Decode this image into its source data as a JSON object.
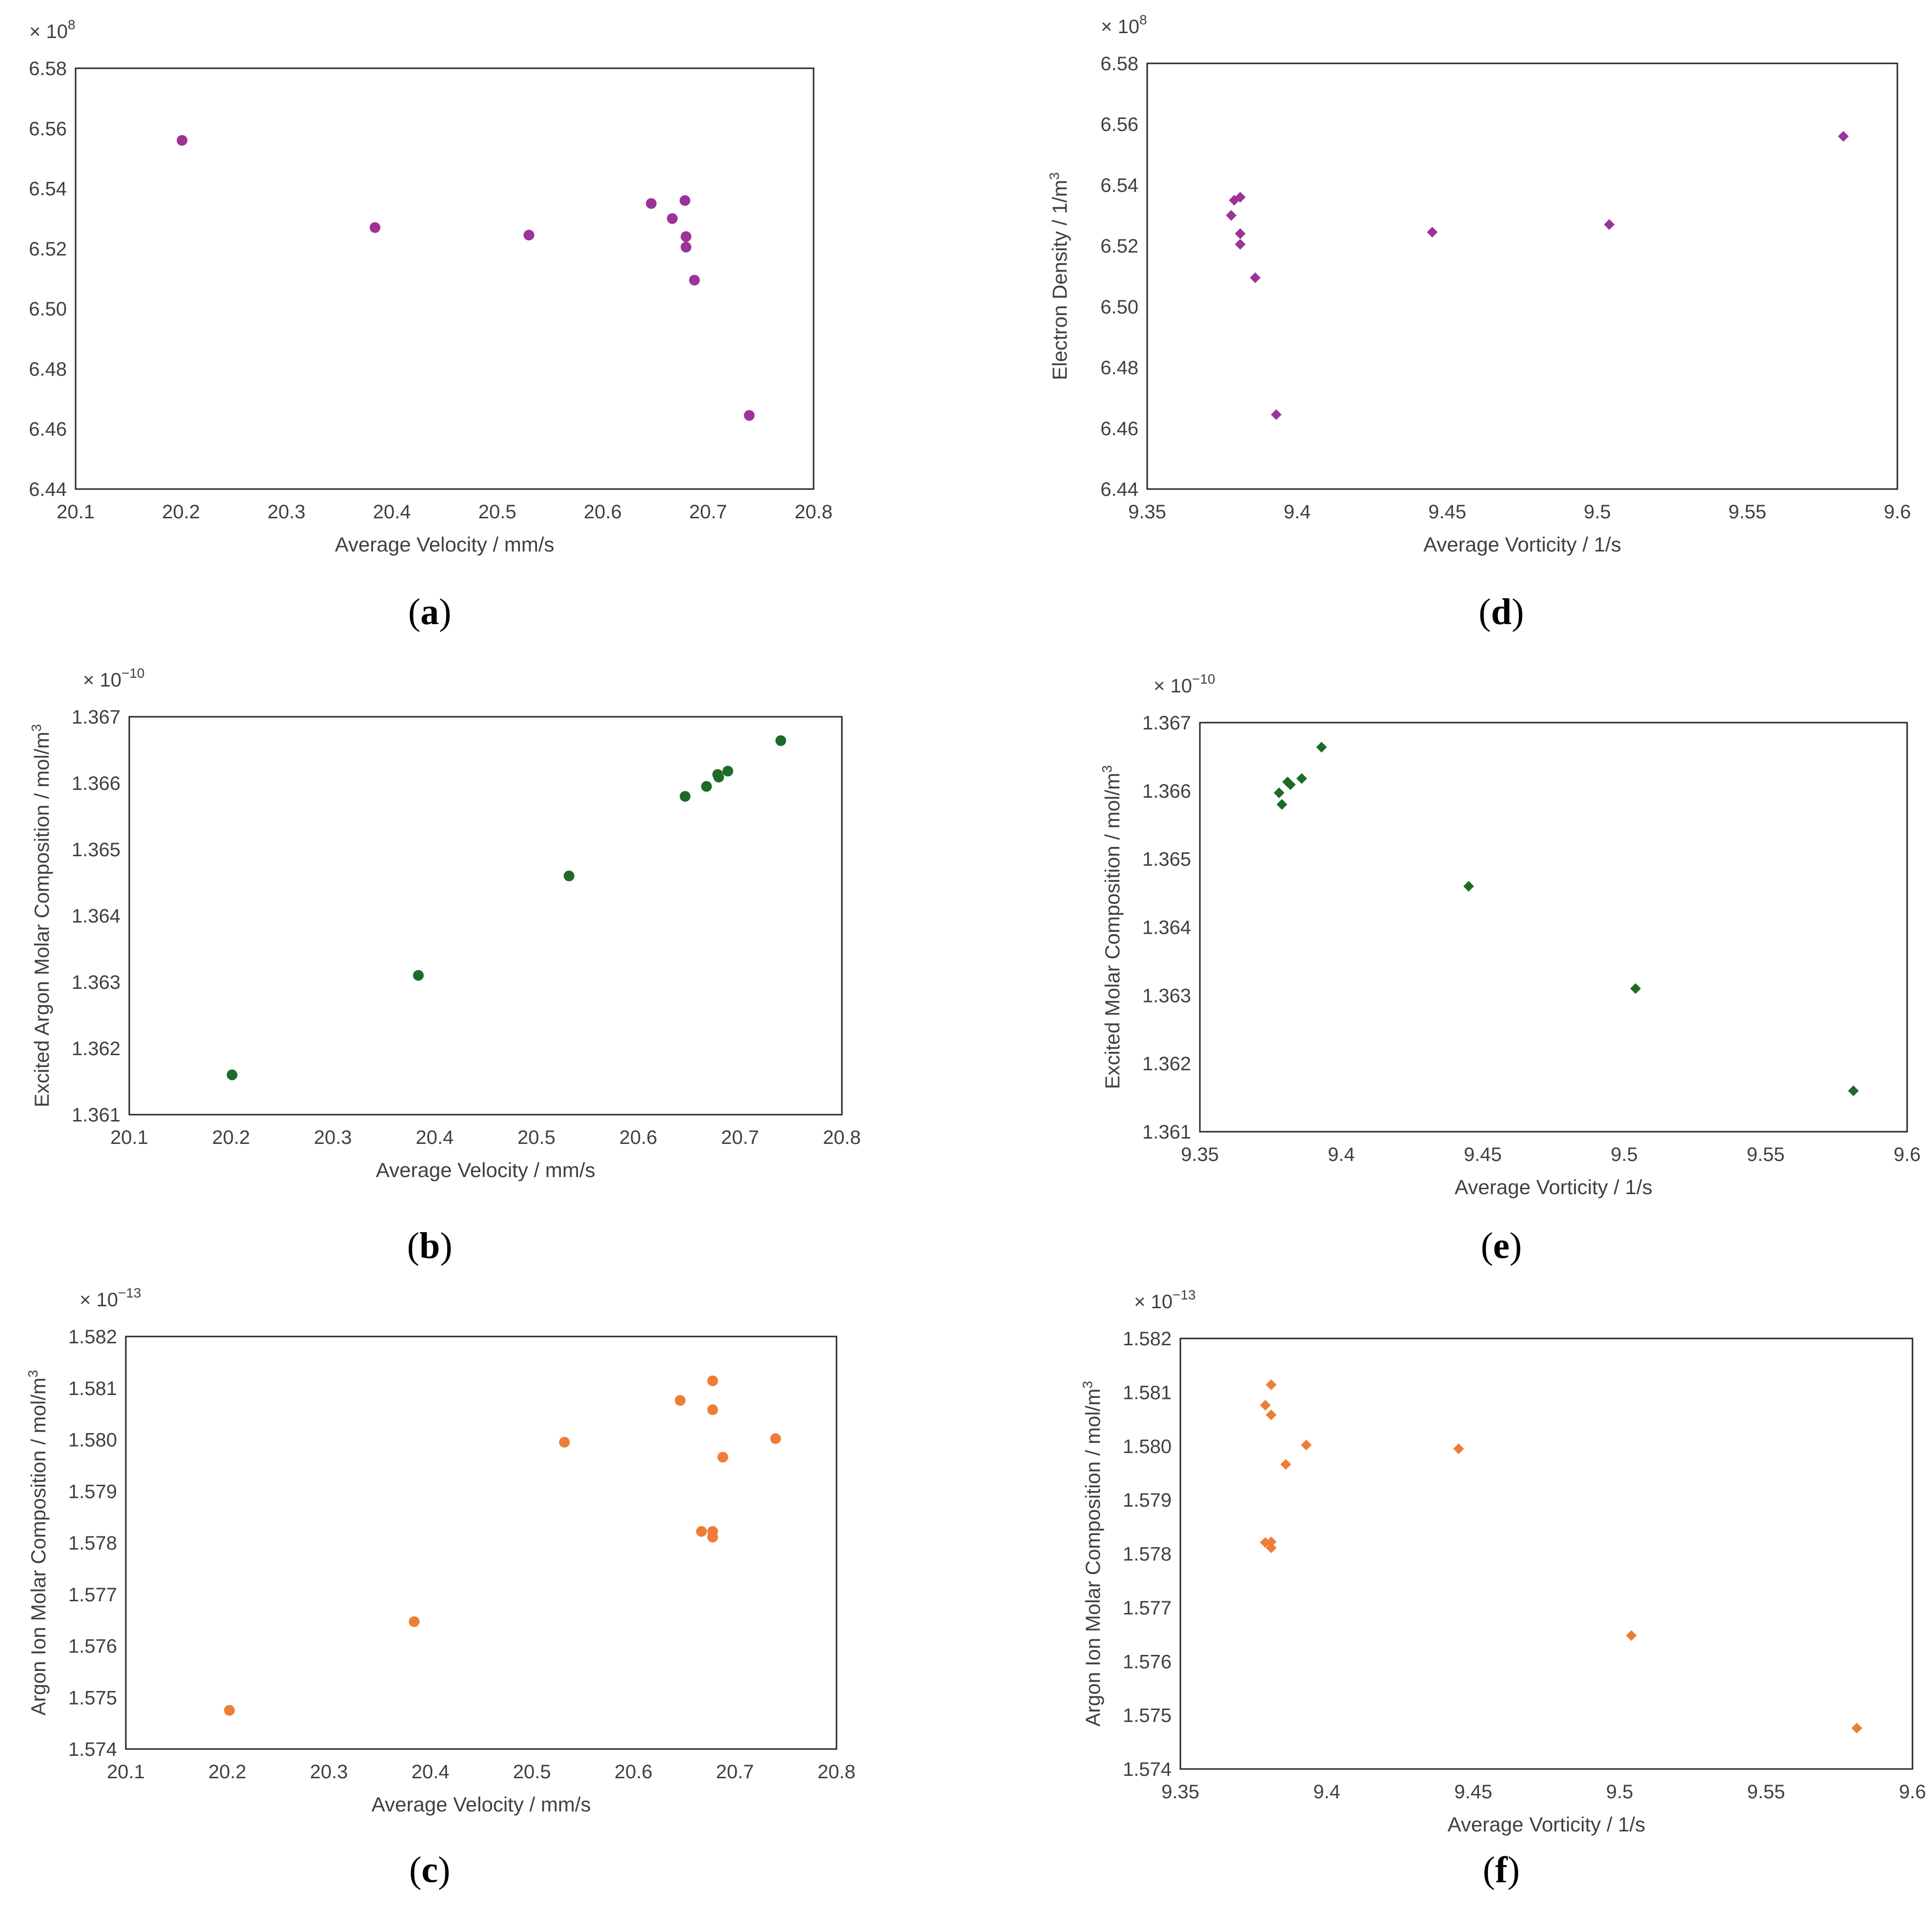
{
  "colors": {
    "purple": "#9b3399",
    "green": "#1e6b28",
    "orange": "#ee7d35",
    "frame": "#262626",
    "text": "#404040"
  },
  "chart_data": [
    {
      "id": "a",
      "type": "scatter",
      "marker": "circle",
      "color": "#9b3399",
      "panel_label": "a",
      "xlabel": "Average Velocity / mm/s",
      "ylabel": "Electron Density / 1/m",
      "ylabel_unit_sup": "3",
      "multiplier_base": "× 10",
      "multiplier_exp": "8",
      "xlim": [
        20.1,
        20.8
      ],
      "ylim": [
        6.44,
        6.58
      ],
      "xticks": [
        "20.1",
        "20.2",
        "20.3",
        "20.4",
        "20.5",
        "20.6",
        "20.7",
        "20.8"
      ],
      "yticks": [
        "6.44",
        "6.46",
        "6.48",
        "6.50",
        "6.52",
        "6.54",
        "6.56",
        "6.58"
      ],
      "grid": false,
      "points": [
        {
          "x": 20.201,
          "y": 6.556
        },
        {
          "x": 20.384,
          "y": 6.527
        },
        {
          "x": 20.53,
          "y": 6.5245
        },
        {
          "x": 20.646,
          "y": 6.535
        },
        {
          "x": 20.666,
          "y": 6.53
        },
        {
          "x": 20.678,
          "y": 6.536
        },
        {
          "x": 20.679,
          "y": 6.524
        },
        {
          "x": 20.679,
          "y": 6.5205
        },
        {
          "x": 20.687,
          "y": 6.5095
        },
        {
          "x": 20.739,
          "y": 6.4645
        }
      ]
    },
    {
      "id": "d",
      "type": "scatter",
      "marker": "diamond",
      "color": "#9b3399",
      "panel_label": "d",
      "xlabel": "Average Vorticity / 1/s",
      "ylabel": "Electron Density / 1/m",
      "ylabel_unit_sup": "3",
      "multiplier_base": "× 10",
      "multiplier_exp": "8",
      "xlim": [
        9.35,
        9.6
      ],
      "ylim": [
        6.44,
        6.58
      ],
      "xticks": [
        "9.35",
        "9.4",
        "9.45",
        "9.5",
        "9.55",
        "9.6"
      ],
      "yticks": [
        "6.44",
        "6.46",
        "6.48",
        "6.50",
        "6.52",
        "6.54",
        "6.56",
        "6.58"
      ],
      "grid": false,
      "points": [
        {
          "x": 9.378,
          "y": 6.53
        },
        {
          "x": 9.379,
          "y": 6.535
        },
        {
          "x": 9.381,
          "y": 6.536
        },
        {
          "x": 9.381,
          "y": 6.524
        },
        {
          "x": 9.381,
          "y": 6.5205
        },
        {
          "x": 9.386,
          "y": 6.5095
        },
        {
          "x": 9.393,
          "y": 6.4645
        },
        {
          "x": 9.445,
          "y": 6.5245
        },
        {
          "x": 9.504,
          "y": 6.527
        },
        {
          "x": 9.582,
          "y": 6.556
        }
      ]
    },
    {
      "id": "b",
      "type": "scatter",
      "marker": "circle",
      "color": "#1e6b28",
      "panel_label": "b",
      "xlabel": "Average Velocity / mm/s",
      "ylabel": "Excited Argon Molar Composition  / mol/m",
      "ylabel_unit_sup": "3",
      "multiplier_base": "× 10",
      "multiplier_exp": "−10",
      "xlim": [
        20.1,
        20.8
      ],
      "ylim": [
        1.361,
        1.367
      ],
      "xticks": [
        "20.1",
        "20.2",
        "20.3",
        "20.4",
        "20.5",
        "20.6",
        "20.7",
        "20.8"
      ],
      "yticks": [
        "1.361",
        "1.362",
        "1.363",
        "1.364",
        "1.365",
        "1.366",
        "1.367"
      ],
      "grid": false,
      "points": [
        {
          "x": 20.201,
          "y": 1.3616
        },
        {
          "x": 20.384,
          "y": 1.3631
        },
        {
          "x": 20.532,
          "y": 1.3646
        },
        {
          "x": 20.646,
          "y": 1.3658
        },
        {
          "x": 20.667,
          "y": 1.36595
        },
        {
          "x": 20.678,
          "y": 1.36613
        },
        {
          "x": 20.679,
          "y": 1.36609
        },
        {
          "x": 20.688,
          "y": 1.36618
        },
        {
          "x": 20.74,
          "y": 1.36664
        }
      ]
    },
    {
      "id": "e",
      "type": "scatter",
      "marker": "diamond",
      "color": "#1e6b28",
      "panel_label": "e",
      "xlabel": "Average Vorticity /  1/s",
      "ylabel": "Excited Molar Composition / mol/m",
      "ylabel_unit_sup": "3",
      "multiplier_base": "× 10",
      "multiplier_exp": "−10",
      "xlim": [
        9.35,
        9.6
      ],
      "ylim": [
        1.361,
        1.367
      ],
      "xticks": [
        "9.35",
        "9.4",
        "9.45",
        "9.5",
        "9.55",
        "9.6"
      ],
      "yticks": [
        "1.361",
        "1.362",
        "1.363",
        "1.364",
        "1.365",
        "1.366",
        "1.367"
      ],
      "grid": false,
      "points": [
        {
          "x": 9.378,
          "y": 1.36597
        },
        {
          "x": 9.379,
          "y": 1.3658
        },
        {
          "x": 9.381,
          "y": 1.36613
        },
        {
          "x": 9.382,
          "y": 1.36609
        },
        {
          "x": 9.386,
          "y": 1.36618
        },
        {
          "x": 9.393,
          "y": 1.36664
        },
        {
          "x": 9.445,
          "y": 1.3646
        },
        {
          "x": 9.504,
          "y": 1.3631
        },
        {
          "x": 9.581,
          "y": 1.3616
        }
      ]
    },
    {
      "id": "c",
      "type": "scatter",
      "marker": "circle",
      "color": "#ee7d35",
      "panel_label": "c",
      "xlabel": "Average Velocity / mm/s",
      "ylabel": "Argon Ion Molar Composition  / mol/m",
      "ylabel_unit_sup": "3",
      "multiplier_base": "× 10",
      "multiplier_exp": "−13",
      "xlim": [
        20.1,
        20.8
      ],
      "ylim": [
        1.574,
        1.582
      ],
      "xticks": [
        "20.1",
        "20.2",
        "20.3",
        "20.4",
        "20.5",
        "20.6",
        "20.7",
        "20.8"
      ],
      "yticks": [
        "1.574",
        "1.575",
        "1.576",
        "1.577",
        "1.578",
        "1.579",
        "1.580",
        "1.581",
        "1.582"
      ],
      "grid": false,
      "points": [
        {
          "x": 20.202,
          "y": 1.57475
        },
        {
          "x": 20.384,
          "y": 1.57647
        },
        {
          "x": 20.532,
          "y": 1.57995
        },
        {
          "x": 20.646,
          "y": 1.58076
        },
        {
          "x": 20.667,
          "y": 1.57822
        },
        {
          "x": 20.678,
          "y": 1.58114
        },
        {
          "x": 20.678,
          "y": 1.58058
        },
        {
          "x": 20.678,
          "y": 1.57822
        },
        {
          "x": 20.678,
          "y": 1.57811
        },
        {
          "x": 20.688,
          "y": 1.57966
        },
        {
          "x": 20.74,
          "y": 1.58002
        }
      ]
    },
    {
      "id": "f",
      "type": "scatter",
      "marker": "diamond",
      "color": "#ee7d35",
      "panel_label": "f",
      "xlabel": "Average Vorticity / 1/s",
      "ylabel": "Argon Ion Molar Composition / mol/m",
      "ylabel_unit_sup": "3",
      "multiplier_base": "× 10",
      "multiplier_exp": "−13",
      "xlim": [
        9.35,
        9.6
      ],
      "ylim": [
        1.574,
        1.582
      ],
      "xticks": [
        "9.35",
        "9.4",
        "9.45",
        "9.5",
        "9.55",
        "9.6"
      ],
      "yticks": [
        "1.574",
        "1.575",
        "1.576",
        "1.577",
        "1.578",
        "1.579",
        "1.580",
        "1.581",
        "1.582"
      ],
      "grid": false,
      "points": [
        {
          "x": 9.379,
          "y": 1.58076
        },
        {
          "x": 9.379,
          "y": 1.57821
        },
        {
          "x": 9.381,
          "y": 1.58114
        },
        {
          "x": 9.381,
          "y": 1.58058
        },
        {
          "x": 9.381,
          "y": 1.57822
        },
        {
          "x": 9.381,
          "y": 1.57811
        },
        {
          "x": 9.386,
          "y": 1.57966
        },
        {
          "x": 9.393,
          "y": 1.58002
        },
        {
          "x": 9.445,
          "y": 1.57995
        },
        {
          "x": 9.504,
          "y": 1.57648
        },
        {
          "x": 9.581,
          "y": 1.57476
        }
      ]
    }
  ]
}
